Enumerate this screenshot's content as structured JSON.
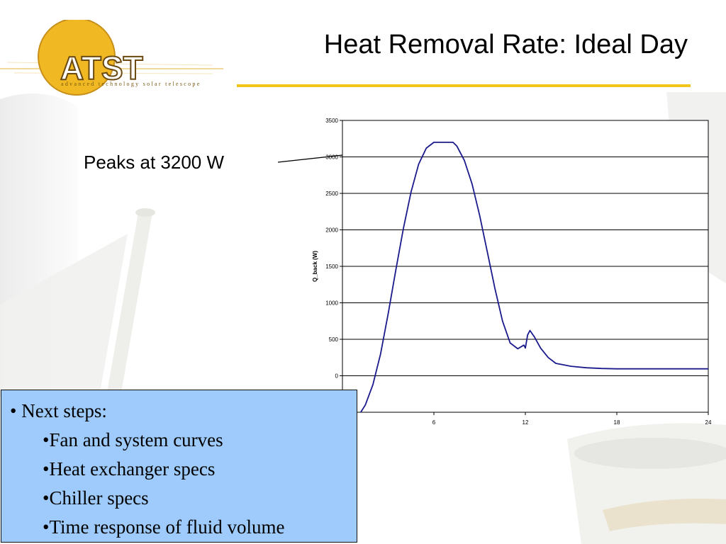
{
  "title": "Heat Removal Rate: Ideal Day",
  "logo": {
    "text": "ATST",
    "caption": "advanced technology solar telescope"
  },
  "annotation": {
    "text": "Peaks at 3200 W"
  },
  "next_steps": {
    "heading": "• Next steps:",
    "items": [
      "•Fan and system curves",
      "•Heat exchanger specs",
      "•Chiller specs",
      "•Time response of fluid volume"
    ]
  },
  "colors": {
    "accent": "#f0c419",
    "line": "#1a1a8c",
    "box_fill": "#9ecbfb"
  },
  "chart_data": {
    "type": "line",
    "title": "",
    "xlabel": "",
    "ylabel": "Q_back (W)",
    "xlim": [
      0,
      24
    ],
    "ylim": [
      -500,
      3500
    ],
    "x_ticks": [
      6,
      12,
      18,
      24
    ],
    "y_ticks": [
      0,
      500,
      1000,
      1500,
      2000,
      2500,
      3000,
      3500
    ],
    "grid": "horizontal",
    "series": [
      {
        "name": "",
        "x": [
          1.2,
          1.5,
          2.0,
          2.5,
          3.0,
          3.5,
          4.0,
          4.5,
          5.0,
          5.5,
          6.0,
          6.5,
          7.0,
          7.25,
          7.5,
          8.0,
          8.5,
          9.0,
          9.5,
          10.0,
          10.5,
          11.0,
          11.5,
          11.9,
          12.0,
          12.15,
          12.3,
          12.6,
          13.0,
          13.5,
          14.0,
          15.0,
          16.0,
          17.0,
          18.0,
          20.0,
          24.0
        ],
        "y": [
          -500,
          -400,
          -120,
          300,
          850,
          1450,
          2020,
          2520,
          2900,
          3120,
          3200,
          3200,
          3200,
          3200,
          3150,
          2950,
          2630,
          2200,
          1700,
          1200,
          750,
          450,
          370,
          420,
          380,
          560,
          620,
          530,
          380,
          250,
          170,
          130,
          110,
          100,
          95,
          95,
          95
        ]
      }
    ]
  }
}
